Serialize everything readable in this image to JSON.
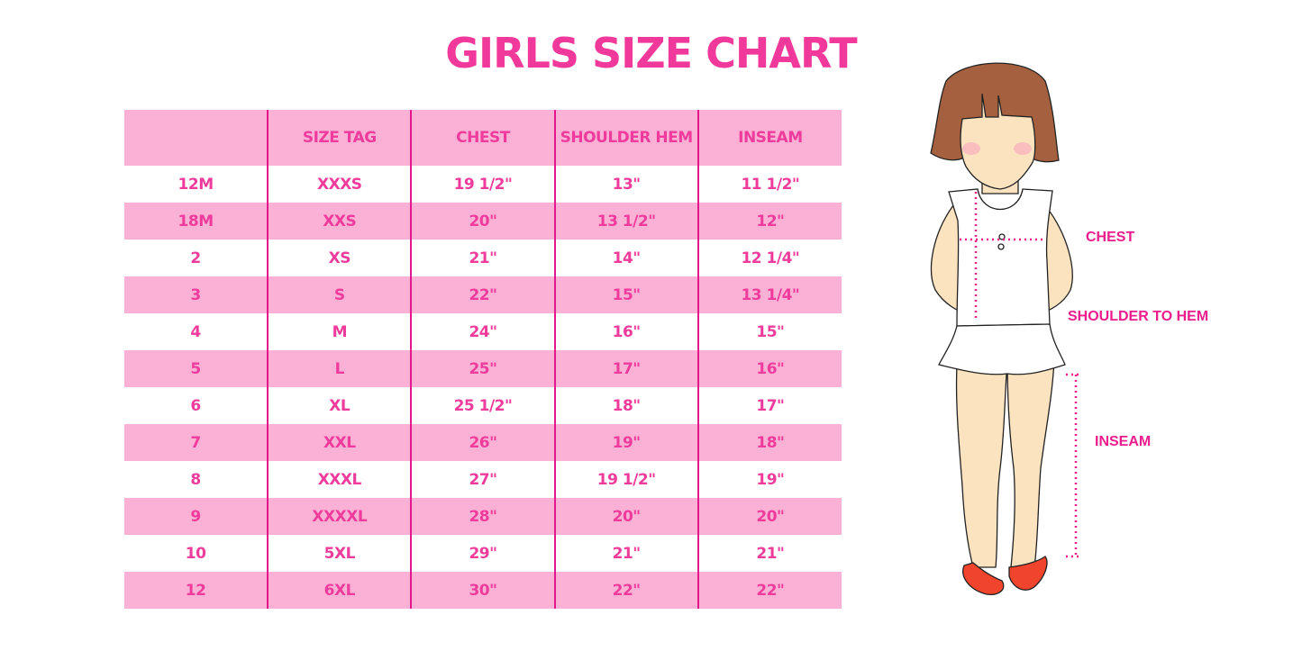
{
  "title": "GIRLS SIZE CHART",
  "table": {
    "headers": [
      "",
      "SIZE TAG",
      "CHEST",
      "SHOULDER HEM",
      "INSEAM"
    ],
    "rows": [
      [
        "12M",
        "XXXS",
        "19 1/2\"",
        "13\"",
        "11 1/2\""
      ],
      [
        "18M",
        "XXS",
        "20\"",
        "13 1/2\"",
        "12\""
      ],
      [
        "2",
        "XS",
        "21\"",
        "14\"",
        "12 1/4\""
      ],
      [
        "3",
        "S",
        "22\"",
        "15\"",
        "13 1/4\""
      ],
      [
        "4",
        "M",
        "24\"",
        "16\"",
        "15\""
      ],
      [
        "5",
        "L",
        "25\"",
        "17\"",
        "16\""
      ],
      [
        "6",
        "XL",
        "25 1/2\"",
        "18\"",
        "17\""
      ],
      [
        "7",
        "XXL",
        "26\"",
        "19\"",
        "18\""
      ],
      [
        "8",
        "XXXL",
        "27\"",
        "19 1/2\"",
        "19\""
      ],
      [
        "9",
        "XXXXL",
        "28\"",
        "20\"",
        "20\""
      ],
      [
        "10",
        "5XL",
        "29\"",
        "21\"",
        "21\""
      ],
      [
        "12",
        "6XL",
        "30\"",
        "22\"",
        "22\""
      ]
    ]
  },
  "figure": {
    "labels": {
      "chest": "CHEST",
      "shoulder_to_hem": "SHOULDER TO HEM",
      "inseam": "INSEAM"
    }
  },
  "colors": {
    "accent": "#ef3b9b",
    "stripe": "#fbb1d6",
    "divider": "#e3168c",
    "hair": "#a5613f",
    "skin": "#fce3c0",
    "shoes": "#f0442c"
  }
}
